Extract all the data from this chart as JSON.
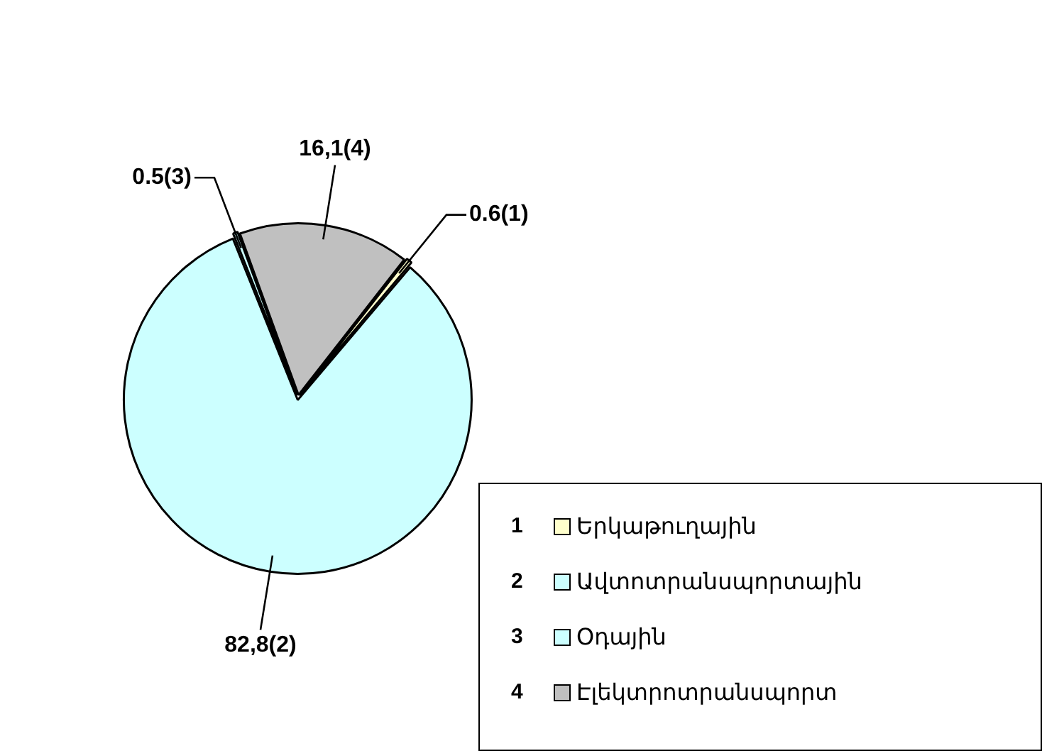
{
  "chart_data": {
    "type": "pie",
    "categories": [
      "Երկաթուղային",
      "Ավտոտրանսպորտային",
      "Օդային",
      "Էլեկտրոտրանսպորտ"
    ],
    "values": [
      0.6,
      82.8,
      0.5,
      16.1
    ],
    "colors": [
      "#ffffcc",
      "#ccffff",
      "#ccffff",
      "#c0c0c0"
    ],
    "value_labels": [
      "0.6(1)",
      "82,8(2)",
      "0.5(3)",
      "16,1(4)"
    ],
    "annotations": [
      "1",
      "2",
      "3",
      "4"
    ],
    "legend": "bottom right"
  }
}
